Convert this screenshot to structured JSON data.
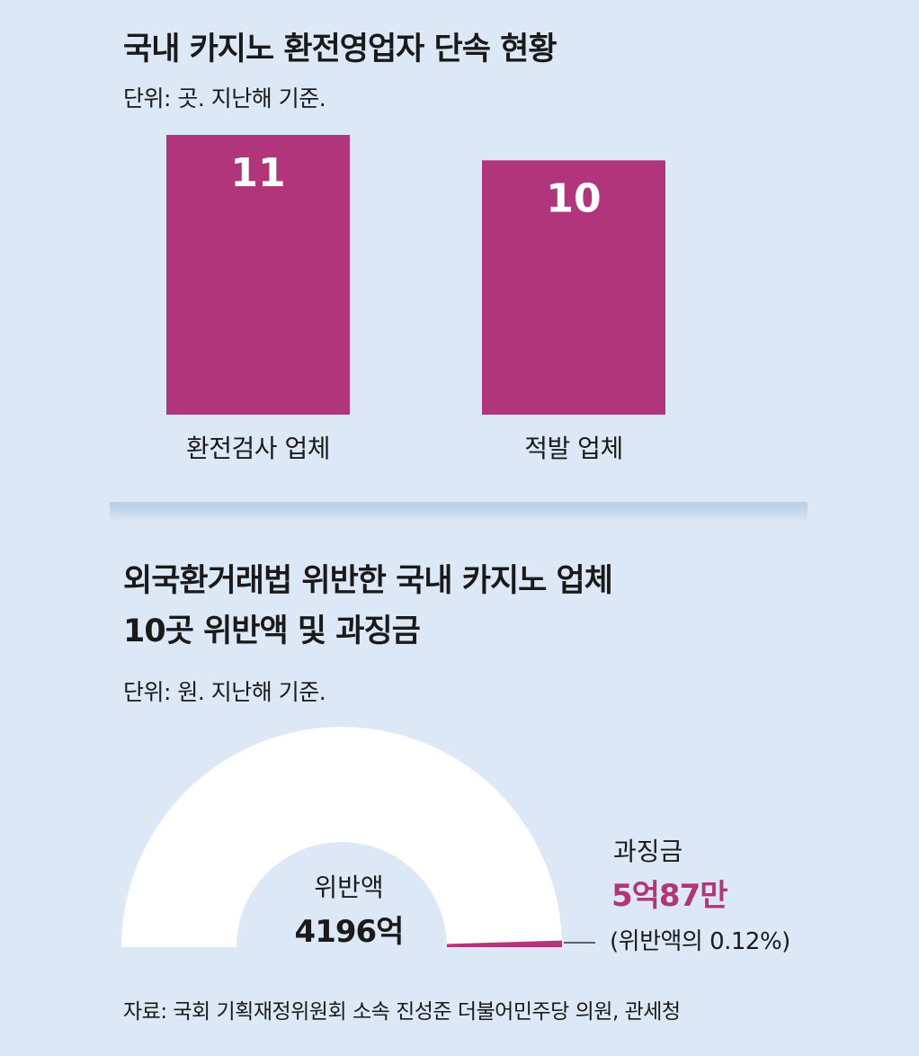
{
  "chart_data": [
    {
      "type": "bar",
      "title": "국내 카지노 환전영업자 단속 현황",
      "subtitle": "단위: 곳. 지난해 기준.",
      "categories": [
        "환전검사 업체",
        "적발 업체"
      ],
      "values": [
        11,
        10
      ],
      "ylim": [
        0,
        11
      ],
      "grid": false,
      "colors": {
        "bar": "#b0357a",
        "label": "#ffffff"
      }
    },
    {
      "type": "pie",
      "title_lines": [
        "외국환거래법 위반한 국내 카지노 업체",
        "10곳 위반액 및 과징금"
      ],
      "subtitle": "단위: 원. 지난해 기준.",
      "slices": [
        {
          "name": "위반액",
          "value_label": "4196억",
          "share": 0.9988
        },
        {
          "name": "과징금",
          "value_label": "5억87만",
          "share": 0.0012,
          "note": "(위반액의 0.12%)"
        }
      ],
      "colors": {
        "main": "#ffffff",
        "highlight": "#b0357a",
        "leader": "#333333"
      }
    }
  ],
  "source": "자료: 국회 기획재정위원회 소속 진성준 더불어민주당 의원, 관세청"
}
